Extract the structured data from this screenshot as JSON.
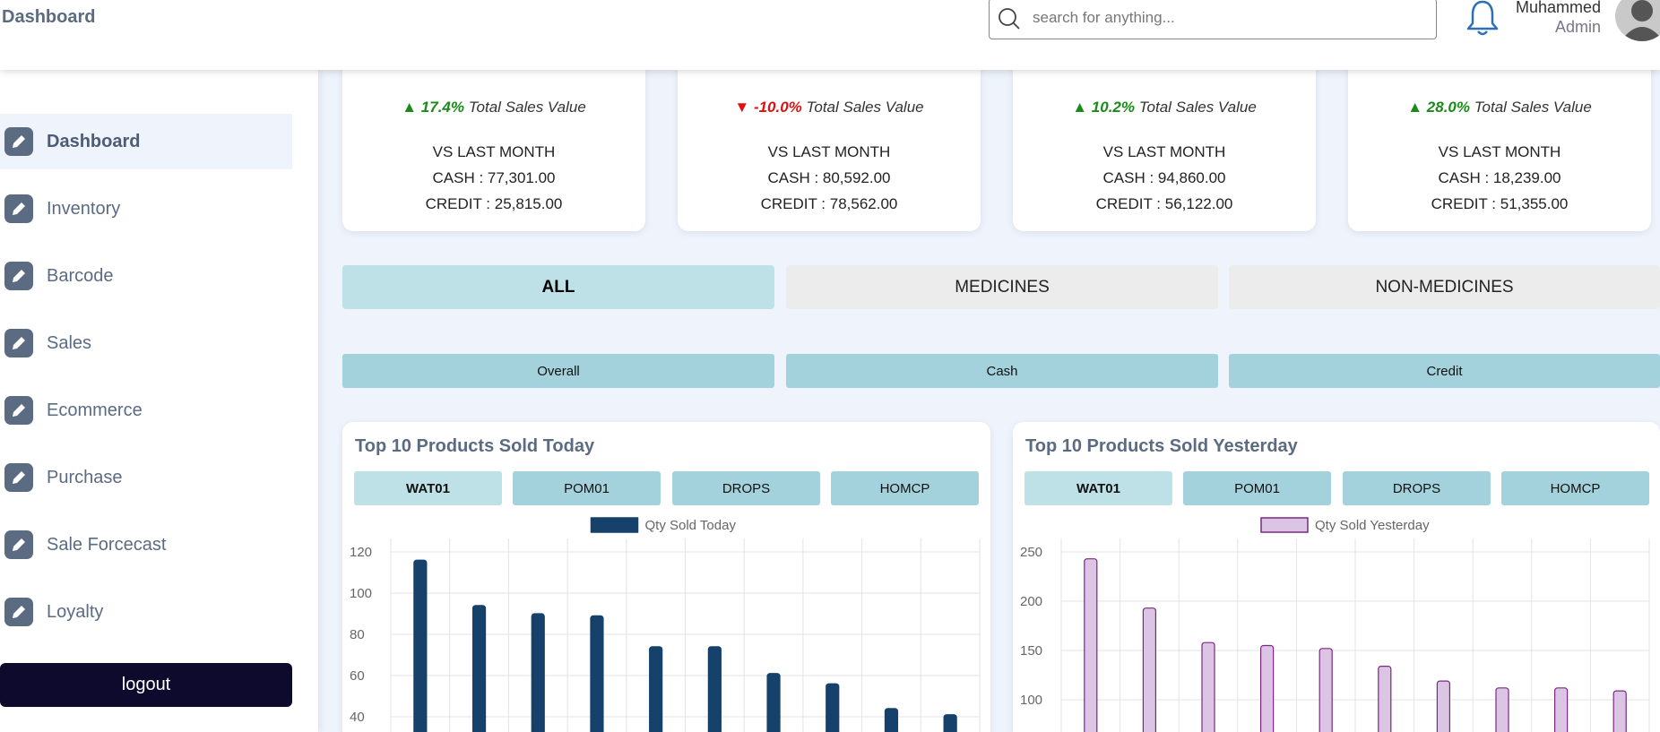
{
  "header": {
    "title": "Dashboard",
    "search_placeholder": "search for anything...",
    "user_name": "Muhammed",
    "user_role": "Admin"
  },
  "sidebar": {
    "items": [
      {
        "label": "Dashboard",
        "active": true
      },
      {
        "label": "Inventory"
      },
      {
        "label": "Barcode"
      },
      {
        "label": "Sales"
      },
      {
        "label": "Ecommerce"
      },
      {
        "label": "Purchase"
      },
      {
        "label": "Sale Forcecast"
      },
      {
        "label": "Loyalty"
      }
    ],
    "logout_label": "logout"
  },
  "cards": [
    {
      "arrow": "▲",
      "direction": "up",
      "pct": "17.4%",
      "label": "Total Sales Value",
      "vs": "VS LAST MONTH",
      "cash": "CASH : 77,301.00",
      "credit": "CREDIT : 25,815.00"
    },
    {
      "arrow": "▼",
      "direction": "down",
      "pct": "-10.0%",
      "label": "Total Sales Value",
      "vs": "VS LAST MONTH",
      "cash": "CASH : 80,592.00",
      "credit": "CREDIT : 78,562.00"
    },
    {
      "arrow": "▲",
      "direction": "up",
      "pct": "10.2%",
      "label": "Total Sales Value",
      "vs": "VS LAST MONTH",
      "cash": "CASH : 94,860.00",
      "credit": "CREDIT : 56,122.00"
    },
    {
      "arrow": "▲",
      "direction": "up",
      "pct": "28.0%",
      "label": "Total Sales Value",
      "vs": "VS LAST MONTH",
      "cash": "CASH : 18,239.00",
      "credit": "CREDIT : 51,355.00"
    }
  ],
  "tabs": [
    "ALL",
    "MEDICINES",
    "NON-MEDICINES"
  ],
  "subtabs": [
    "Overall",
    "Cash",
    "Credit"
  ],
  "panels": [
    {
      "title": "Top 10 Products Sold Today",
      "tabs": [
        "WAT01",
        "POM01",
        "DROPS",
        "HOMCP"
      ]
    },
    {
      "title": "Top 10 Products Sold Yesterday",
      "tabs": [
        "WAT01",
        "POM01",
        "DROPS",
        "HOMCP"
      ]
    }
  ],
  "chart_data": [
    {
      "type": "bar",
      "title": "",
      "series": [
        {
          "name": "Qty Sold Today",
          "values": [
            116,
            94,
            90,
            89,
            74,
            74,
            61,
            56,
            44,
            41
          ]
        }
      ],
      "y_ticks": [
        40,
        60,
        80,
        100,
        120
      ],
      "ylim": [
        0,
        125
      ],
      "grid": true,
      "legend": "top-center",
      "fill": "#15416b",
      "stroke": "#15416b"
    },
    {
      "type": "bar",
      "title": "",
      "series": [
        {
          "name": "Qty Sold Yesterday",
          "values": [
            243,
            193,
            158,
            155,
            152,
            134,
            119,
            112,
            112,
            109
          ]
        }
      ],
      "y_ticks": [
        100,
        150,
        200,
        250
      ],
      "ylim": [
        0,
        255
      ],
      "grid": true,
      "legend": "top-center",
      "fill": "#dcc4e4",
      "stroke": "#7a2a80"
    }
  ]
}
